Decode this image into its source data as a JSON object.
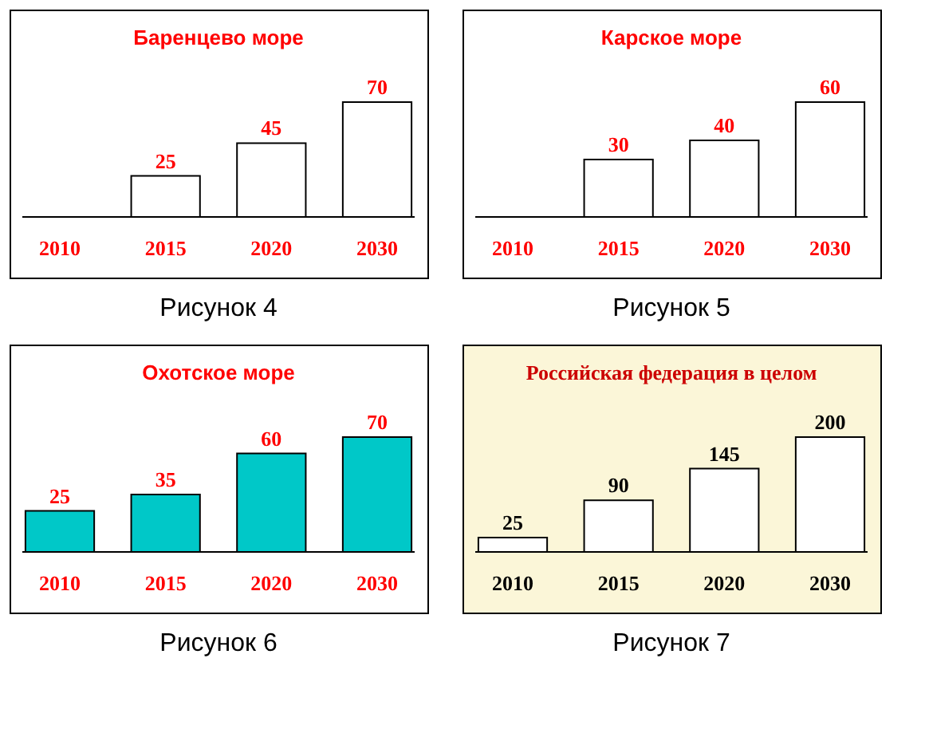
{
  "chart_data": [
    {
      "type": "bar",
      "title": "Баренцево море",
      "categories": [
        "2010",
        "2015",
        "2020",
        "2030"
      ],
      "values": [
        null,
        25,
        45,
        70
      ],
      "color": "#ffffff",
      "data_labels": true,
      "annotations": [
        "Рисунок 4"
      ]
    },
    {
      "type": "bar",
      "title": "Карское море",
      "categories": [
        "2010",
        "2015",
        "2020",
        "2030"
      ],
      "values": [
        null,
        30,
        40,
        60
      ],
      "color": "#ffffff",
      "data_labels": true,
      "annotations": [
        "Рисунок 5"
      ]
    },
    {
      "type": "bar",
      "title": "Охотское море",
      "categories": [
        "2010",
        "2015",
        "2020",
        "2030"
      ],
      "values": [
        25,
        35,
        60,
        70
      ],
      "color": "#00c8c8",
      "data_labels": true,
      "annotations": [
        "Рисунок 6"
      ]
    },
    {
      "type": "bar",
      "title": "Российская федерация в целом",
      "categories": [
        "2010",
        "2015",
        "2020",
        "2030"
      ],
      "values": [
        25,
        90,
        145,
        200
      ],
      "color": "#ffffff",
      "data_labels": true,
      "annotations": [
        "Рисунок 7"
      ]
    }
  ]
}
